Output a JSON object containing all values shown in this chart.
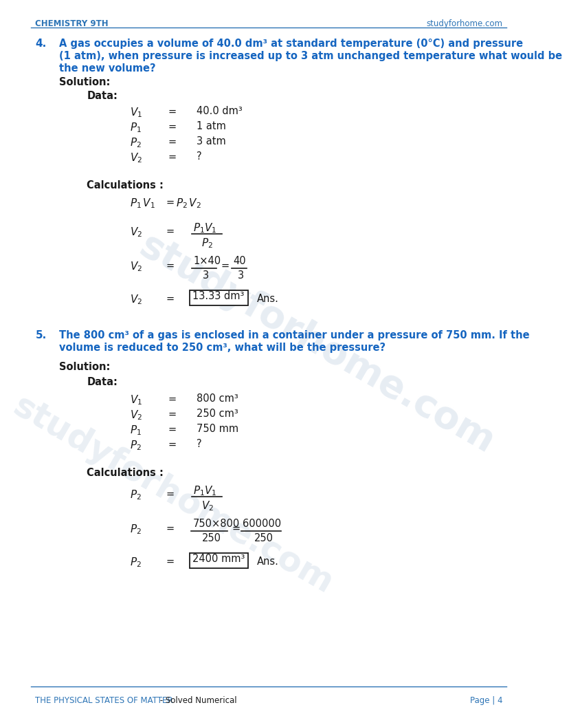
{
  "header_left": "CHEMISTRY 9TH",
  "header_right": "studyforhome.com",
  "footer_left": "THE PHYSICAL STATES OF MATTER",
  "footer_left2": " - Solved Numerical",
  "footer_right": "Page | 4",
  "header_color": "#2e75b6",
  "text_dark": "#1a1a1a",
  "blue_bold": "#1565c0",
  "bg_color": "#ffffff",
  "q4_num": "4.",
  "q4_line1": "A gas occupies a volume of 40.0 dm³ at standard temperature (0°C) and pressure",
  "q4_line2": "(1 atm), when pressure is increased up to 3 atm unchanged temperature what would be",
  "q4_line3": "the new volume?",
  "q5_num": "5.",
  "q5_line1": "The 800 cm³ of a gas is enclosed in a container under a pressure of 750 mm. If the",
  "q5_line2": "volume is reduced to 250 cm³, what will be the pressure?"
}
